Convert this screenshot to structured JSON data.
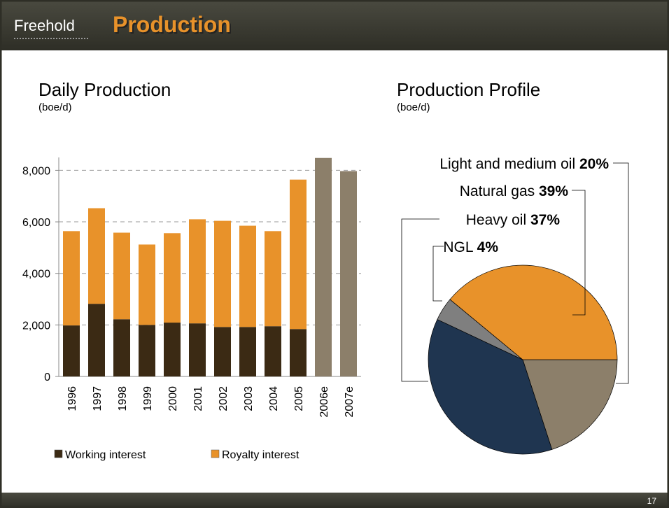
{
  "header": {
    "logo": "Freehold",
    "title": "Production"
  },
  "page_number": "17",
  "chart_data": [
    {
      "type": "bar",
      "stacked": true,
      "title": "Daily Production",
      "subtitle": "(boe/d)",
      "categories": [
        "1996",
        "1997",
        "1998",
        "1999",
        "2000",
        "2001",
        "2002",
        "2003",
        "2004",
        "2005",
        "2006e",
        "2007e"
      ],
      "series": [
        {
          "name": "Working interest",
          "color": "#3b2a14",
          "values": [
            1980,
            2820,
            2220,
            2000,
            2090,
            2060,
            1920,
            1920,
            1950,
            1840,
            null,
            null
          ]
        },
        {
          "name": "Royalty interest",
          "color": "#e8922a",
          "values": [
            3660,
            3710,
            3360,
            3120,
            3470,
            4040,
            4120,
            3930,
            3690,
            5800,
            null,
            null
          ]
        },
        {
          "color": "#8c7f6a",
          "values": [
            null,
            null,
            null,
            null,
            null,
            null,
            null,
            null,
            null,
            null,
            8480,
            7970
          ]
        }
      ],
      "ylim": [
        0,
        8500
      ],
      "yticks": [
        0,
        {
          "value": 2000,
          "label": "2,000"
        },
        {
          "value": 4000,
          "label": "4,000"
        },
        {
          "value": 6000,
          "label": "6,000"
        },
        {
          "value": 8000,
          "label": "8,000"
        }
      ],
      "grid": true,
      "legend": "bottom"
    },
    {
      "type": "pie",
      "title": "Production Profile",
      "subtitle": "(boe/d)",
      "categories": [
        "Light and medium oil",
        "Heavy oil",
        "NGL",
        "Natural gas"
      ],
      "values": [
        20,
        37,
        4,
        39
      ],
      "value_labels": [
        "20%",
        "37%",
        "4%",
        "39%"
      ],
      "colors": [
        "#8c7f6a",
        "#1f3550",
        "#7f7f7f",
        "#e8922a"
      ]
    }
  ]
}
